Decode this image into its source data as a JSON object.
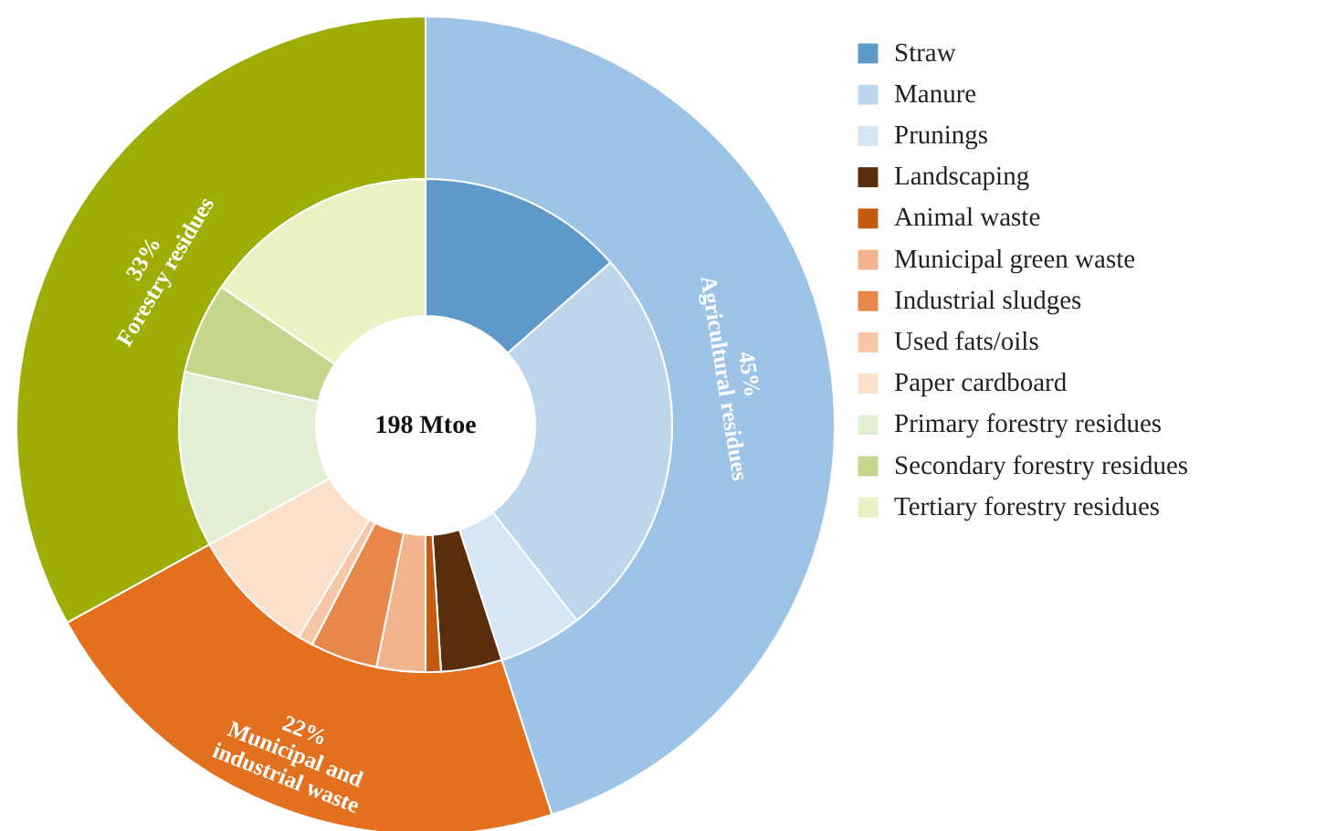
{
  "chart_data": [
    {
      "type": "donut",
      "categories": [
        "Agricultural residues",
        "Municipal and industrial waste",
        "Forestry residues"
      ],
      "values": [
        45,
        22,
        33
      ],
      "colors": [
        "#9dc3e6",
        "#e2701f",
        "#9fae06"
      ],
      "value_labels": [
        "45%",
        "22%",
        "33%"
      ]
    },
    {
      "type": "donut",
      "categories": [
        "Straw",
        "Manure",
        "Prunings",
        "Landscaping",
        "Animal waste",
        "Municipal green waste",
        "Industrial sludges",
        "Used fats/oils",
        "Paper cardboard",
        "Primary forestry residues",
        "Secondary forestry residues",
        "Tertiary forestry residues"
      ],
      "values": [
        13.5,
        26,
        5.5,
        4,
        1,
        3.2,
        4.4,
        1,
        8.4,
        11.5,
        6,
        15.5
      ],
      "colors": [
        "#5f99c9",
        "#bed6eb",
        "#d6e6f4",
        "#5a2d0c",
        "#c55a11",
        "#f2b48c",
        "#e8874a",
        "#f6c6a6",
        "#fbe0cc",
        "#e3efd2",
        "#c3d68c",
        "#eaf2c4"
      ],
      "legend": "right",
      "annotations": [
        "198 Mtoe"
      ]
    }
  ]
}
